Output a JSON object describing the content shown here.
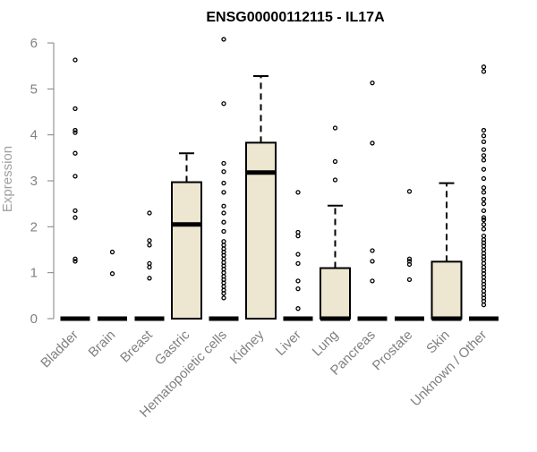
{
  "chart_data": {
    "type": "boxplot",
    "title": "ENSG00000112115 - IL17A",
    "xlabel": "",
    "ylabel": "Expression",
    "ylim": [
      0,
      6
    ],
    "yticks": [
      0,
      1,
      2,
      3,
      4,
      5,
      6
    ],
    "grid": false,
    "legend": "none",
    "box_color": "#ede6d0",
    "line_color": "#000000",
    "axis_color": "#808080",
    "categories": [
      "Bladder",
      "Brain",
      "Breast",
      "Gastric",
      "Hematopoietic cells",
      "Kidney",
      "Liver",
      "Lung",
      "Pancreas",
      "Prostate",
      "Skin",
      "Unknown / Other"
    ],
    "boxes": [
      {
        "category": "Bladder",
        "min": 0,
        "q1": 0,
        "median": 0,
        "q3": 0,
        "max": 0,
        "outliers": [
          1.25,
          1.3,
          2.2,
          2.35,
          3.1,
          3.6,
          4.05,
          4.1,
          4.57,
          5.63
        ]
      },
      {
        "category": "Brain",
        "min": 0,
        "q1": 0,
        "median": 0,
        "q3": 0,
        "max": 0,
        "outliers": [
          0.98,
          1.45
        ]
      },
      {
        "category": "Breast",
        "min": 0,
        "q1": 0,
        "median": 0,
        "q3": 0,
        "max": 0,
        "outliers": [
          0.88,
          1.12,
          1.2,
          1.6,
          1.7,
          2.3
        ]
      },
      {
        "category": "Gastric",
        "min": 0,
        "q1": 0,
        "median": 2.05,
        "q3": 2.97,
        "max": 3.6,
        "outliers": []
      },
      {
        "category": "Hematopoietic cells",
        "min": 0,
        "q1": 0,
        "median": 0,
        "q3": 0,
        "max": 0,
        "outliers": [
          0.45,
          0.55,
          0.62,
          0.7,
          0.78,
          0.85,
          0.92,
          1.0,
          1.08,
          1.15,
          1.22,
          1.3,
          1.38,
          1.45,
          1.52,
          1.6,
          1.68,
          1.9,
          2.1,
          2.3,
          2.45,
          2.75,
          2.95,
          3.2,
          3.38,
          4.68,
          6.08
        ]
      },
      {
        "category": "Kidney",
        "min": 0,
        "q1": 0,
        "median": 3.18,
        "q3": 3.83,
        "max": 5.28,
        "outliers": []
      },
      {
        "category": "Liver",
        "min": 0,
        "q1": 0,
        "median": 0,
        "q3": 0,
        "max": 0,
        "outliers": [
          0.22,
          0.65,
          0.82,
          1.2,
          1.4,
          1.8,
          1.88,
          2.75
        ]
      },
      {
        "category": "Lung",
        "min": 0,
        "q1": 0,
        "median": 0,
        "q3": 1.1,
        "max": 2.46,
        "outliers": [
          3.02,
          3.42,
          4.15
        ]
      },
      {
        "category": "Pancreas",
        "min": 0,
        "q1": 0,
        "median": 0,
        "q3": 0,
        "max": 0,
        "outliers": [
          0.82,
          1.25,
          1.48,
          3.82,
          5.13
        ]
      },
      {
        "category": "Prostate",
        "min": 0,
        "q1": 0,
        "median": 0,
        "q3": 0,
        "max": 0,
        "outliers": [
          0.85,
          1.18,
          1.25,
          1.3,
          2.77
        ]
      },
      {
        "category": "Skin",
        "min": 0,
        "q1": 0,
        "median": 0,
        "q3": 1.24,
        "max": 2.95,
        "outliers": []
      },
      {
        "category": "Unknown / Other",
        "min": 0,
        "q1": 0,
        "median": 0,
        "q3": 0,
        "max": 0,
        "outliers": [
          0.3,
          0.38,
          0.45,
          0.52,
          0.6,
          0.68,
          0.75,
          0.82,
          0.9,
          0.98,
          1.05,
          1.12,
          1.2,
          1.28,
          1.35,
          1.42,
          1.5,
          1.58,
          1.65,
          1.72,
          1.8,
          1.95,
          2.05,
          2.15,
          2.2,
          2.35,
          2.5,
          2.6,
          2.75,
          2.85,
          3.05,
          3.25,
          3.45,
          3.55,
          3.68,
          3.85,
          3.98,
          4.1,
          5.38,
          5.48
        ]
      }
    ]
  }
}
